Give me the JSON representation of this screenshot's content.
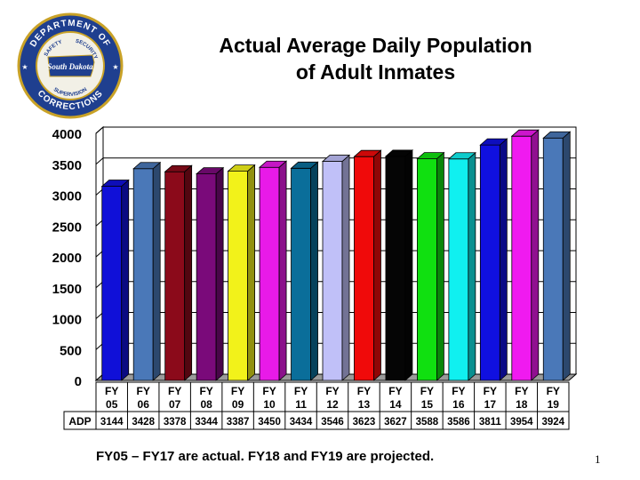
{
  "title_line1": "Actual Average Daily Population",
  "title_line2": "of Adult Inmates",
  "logo": {
    "text_top": "DEPARTMENT OF",
    "text_bottom": "CORRECTIONS",
    "text_safety": "SAFETY",
    "text_security": "SECURITY",
    "text_supervision": "SUPERVISION",
    "text_state": "South Dakota",
    "ring_color": "#1f3f8f",
    "field_color": "#f2f0e6"
  },
  "footnote": "FY05 – FY17 are actual.  FY18 and FY19 are projected.",
  "page_number": "1",
  "chart_data": {
    "type": "bar",
    "title": "Actual Average Daily Population of Adult Inmates",
    "categories": [
      [
        "FY",
        "05"
      ],
      [
        "FY",
        "06"
      ],
      [
        "FY",
        "07"
      ],
      [
        "FY",
        "08"
      ],
      [
        "FY",
        "09"
      ],
      [
        "FY",
        "10"
      ],
      [
        "FY",
        "11"
      ],
      [
        "FY",
        "12"
      ],
      [
        "FY",
        "13"
      ],
      [
        "FY",
        "14"
      ],
      [
        "FY",
        "15"
      ],
      [
        "FY",
        "16"
      ],
      [
        "FY",
        "17"
      ],
      [
        "FY",
        "18"
      ],
      [
        "FY",
        "19"
      ]
    ],
    "values": [
      3144,
      3428,
      3378,
      3344,
      3387,
      3450,
      3434,
      3546,
      3623,
      3627,
      3588,
      3586,
      3811,
      3954,
      3924
    ],
    "value_labels": [
      "3144",
      "3428",
      "3378",
      "3344",
      "3387",
      "3450",
      "3434",
      "3546",
      "3623",
      "3627",
      "3588",
      "3586",
      "3811",
      "3954",
      "3924"
    ],
    "bar_colors": [
      "#1010d8",
      "#4a78b8",
      "#8b0a1a",
      "#7a0a7a",
      "#f2f21a",
      "#e81ae8",
      "#0a6e9a",
      "#c0c0f8",
      "#f00a0a",
      "#050505",
      "#10e010",
      "#10f0f0",
      "#1010e0",
      "#f01af0",
      "#4a78b8"
    ],
    "table_row_label": "ADP",
    "y_ticks": [
      "0",
      "500",
      "1000",
      "1500",
      "2000",
      "2500",
      "3000",
      "3500",
      "4000"
    ],
    "ylim": [
      0,
      4000
    ],
    "y_step": 500,
    "grid": true,
    "legend": "none"
  }
}
